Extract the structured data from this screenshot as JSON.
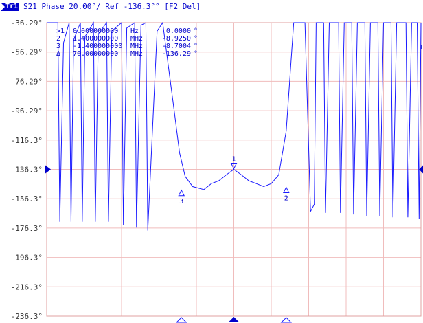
{
  "header": {
    "trace_badge": "Tr1",
    "text": "S21 Phase 20.00°/ Ref -136.3°° [F2 Del]"
  },
  "marker_table": [
    {
      "id": ">1",
      "freq": "0.000000000",
      "freq_unit": "Hz",
      "value": "0.0000",
      "unit": "°"
    },
    {
      "id": "2",
      "freq": "1.400000000",
      "freq_unit": "MHz",
      "value": "-8.9250",
      "unit": "°"
    },
    {
      "id": "3",
      "freq": "-1.400000000",
      "freq_unit": "MHz",
      "value": "-8.7004",
      "unit": "°"
    },
    {
      "id": "Δ",
      "freq": "70.00000000",
      "freq_unit": "MHz",
      "value": "-136.29",
      "unit": "°"
    }
  ],
  "markers_on_trace": [
    "1",
    "2",
    "3"
  ],
  "right_edge_label": "1",
  "colors": {
    "trace": "#1a1aff",
    "grid": "#f0bcbc",
    "text": "#0000cc",
    "background": "#ffffff"
  },
  "chart_data": {
    "type": "line",
    "title": "S21 Phase 20.00°/ Ref -136.3°° [F2 Del]",
    "y_tick_labels": [
      "-36.29°",
      "-56.29°",
      "-76.29°",
      "-96.29°",
      "-116.3°",
      "-136.3°",
      "-156.3°",
      "-176.3°",
      "-196.3°",
      "-216.3°",
      "-236.3°"
    ],
    "ylim": [
      -236.29,
      -36.29
    ],
    "reference_value": -136.3,
    "grid": true,
    "x_divisions": 10,
    "xlim": [
      -5,
      5
    ],
    "x_unit": "div",
    "series": [
      {
        "x": [
          -5.0,
          -4.7,
          -4.65,
          -4.55,
          -4.4,
          -4.35,
          -4.28,
          -4.1,
          -4.05,
          -3.98,
          -3.75,
          -3.7,
          -3.62,
          -3.4,
          -3.35,
          -3.26,
          -3.0,
          -2.95,
          -2.86,
          -2.65,
          -2.6,
          -2.48,
          -2.35,
          -2.3,
          -2.05,
          -1.9,
          -1.6,
          -1.45,
          -1.3,
          -1.1,
          -0.8,
          -0.6,
          -0.4,
          -0.2,
          0.0,
          0.2,
          0.4,
          0.6,
          0.8,
          1.0,
          1.2,
          1.4,
          1.6,
          1.8,
          1.9,
          2.05,
          2.15,
          2.2,
          2.4,
          2.45,
          2.55,
          2.8,
          2.85,
          2.95,
          3.15,
          3.2,
          3.3,
          3.5,
          3.55,
          3.65,
          3.85,
          3.9,
          4.0,
          4.2,
          4.25,
          4.35,
          4.6,
          4.65,
          4.75,
          4.9,
          4.95,
          5.0
        ],
        "y": [
          -36.3,
          -36.3,
          -172.0,
          -50.0,
          -36.3,
          -172.0,
          -48.0,
          -36.3,
          -172.0,
          -46.0,
          -36.3,
          -172.0,
          -44.0,
          -36.3,
          -172.0,
          -42.0,
          -36.3,
          -174.0,
          -40.0,
          -36.3,
          -176.0,
          -38.0,
          -36.3,
          -178.0,
          -42.0,
          -36.3,
          -95.0,
          -125.0,
          -141.0,
          -148.0,
          -150.0,
          -146.0,
          -144.0,
          -140.0,
          -136.3,
          -140.0,
          -144.0,
          -146.0,
          -148.0,
          -146.0,
          -140.0,
          -110.0,
          -36.3,
          -36.3,
          -36.3,
          -165.0,
          -160.0,
          -36.3,
          -36.3,
          -166.0,
          -36.3,
          -36.3,
          -166.0,
          -36.3,
          -36.3,
          -167.0,
          -36.3,
          -36.3,
          -168.0,
          -36.3,
          -36.3,
          -168.0,
          -36.3,
          -36.3,
          -169.0,
          -36.3,
          -36.3,
          -169.0,
          -36.3,
          -36.3,
          -170.0,
          -36.3
        ]
      }
    ]
  }
}
